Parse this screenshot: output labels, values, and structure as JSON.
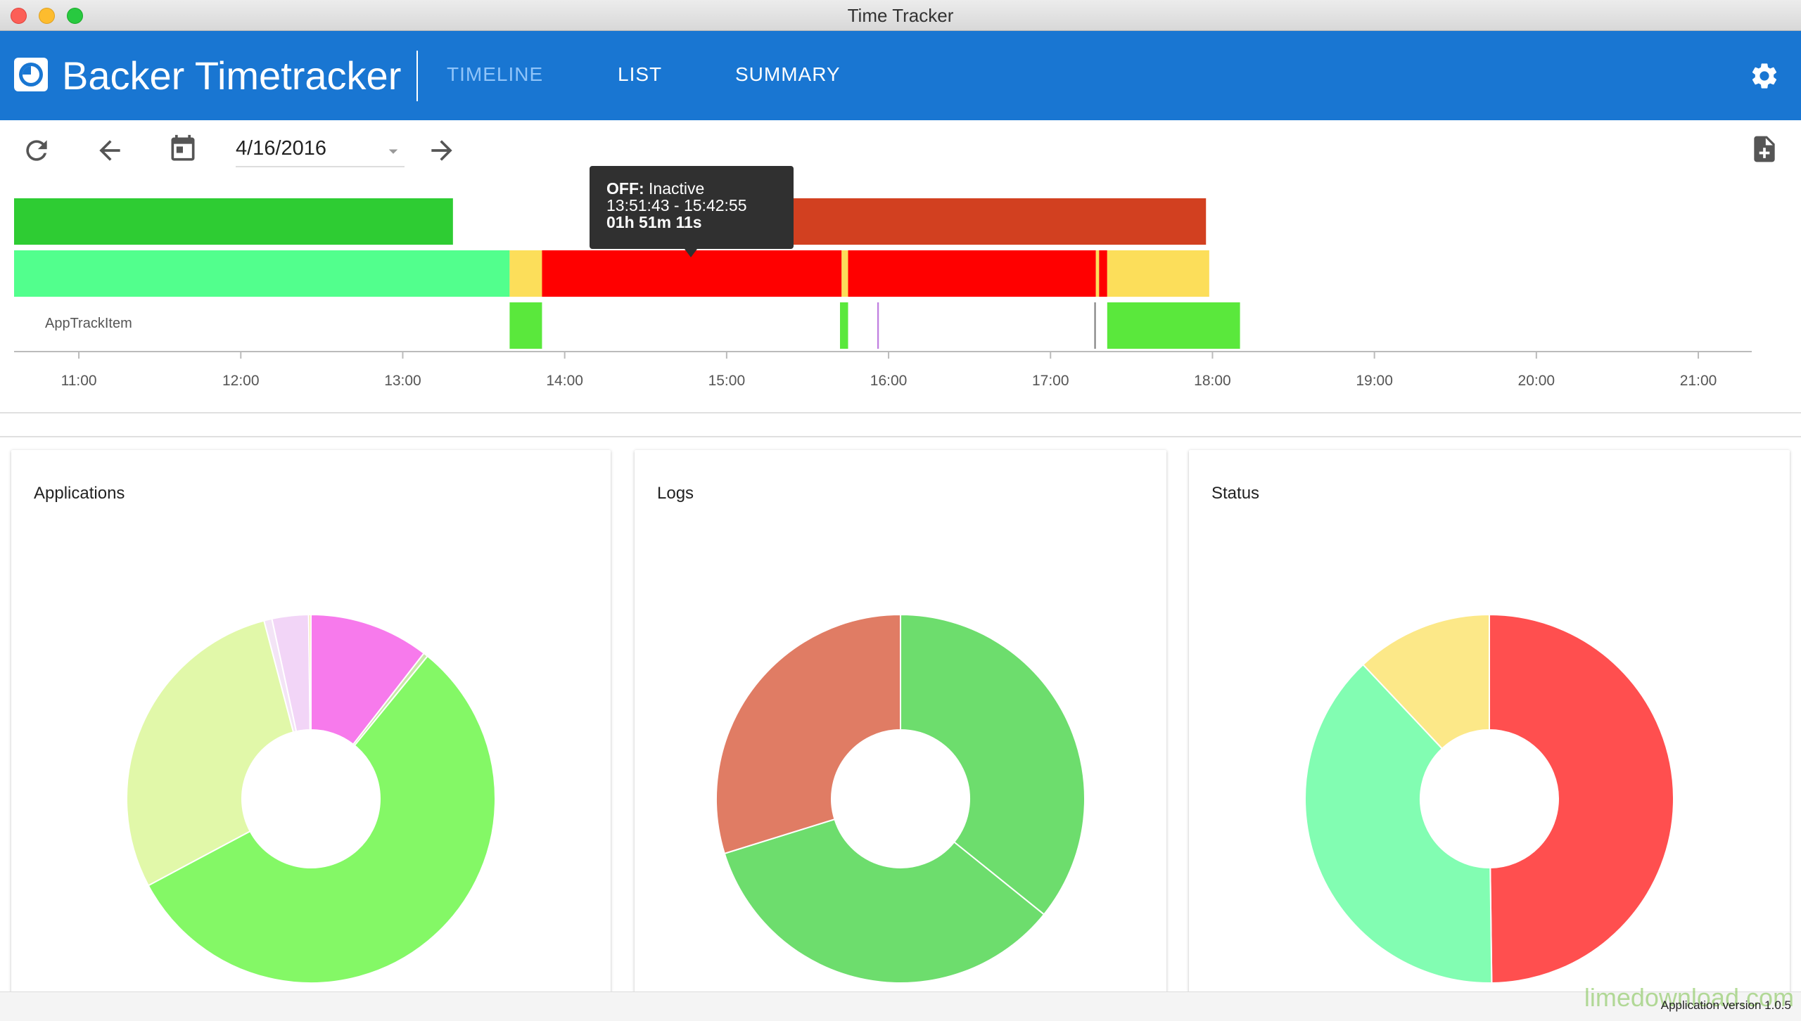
{
  "window": {
    "title": "Time Tracker"
  },
  "header": {
    "brand": "Backer Timetracker",
    "tabs": [
      {
        "label": "TIMELINE",
        "active": true
      },
      {
        "label": "LIST",
        "active": false
      },
      {
        "label": "SUMMARY",
        "active": false
      }
    ],
    "icons": {
      "logo": "clock-logo-icon",
      "settings": "gear-icon"
    }
  },
  "toolbar": {
    "date": "4/16/2016",
    "icons": [
      "refresh-icon",
      "arrow-back-icon",
      "calendar-icon",
      "dropdown-arrow-icon",
      "arrow-forward-icon",
      "add-file-icon"
    ]
  },
  "timeline": {
    "row_label": "AppTrackItem",
    "ticks": [
      "11:00",
      "12:00",
      "13:00",
      "14:00",
      "15:00",
      "16:00",
      "17:00",
      "18:00",
      "19:00",
      "20:00",
      "21:00"
    ],
    "start_hour": 10.6,
    "end_hour": 21.33,
    "lane1": [
      {
        "s": 10.6,
        "e": 13.31,
        "color": "#2ecc33"
      },
      {
        "s": 15.2,
        "e": 17.96,
        "color": "#d24020"
      }
    ],
    "lane2": [
      {
        "s": 10.6,
        "e": 13.66,
        "color": "#52ff8d"
      },
      {
        "s": 13.66,
        "e": 13.86,
        "color": "#fcde5a"
      },
      {
        "s": 13.86,
        "e": 15.71,
        "color": "#ff0000"
      },
      {
        "s": 15.71,
        "e": 15.75,
        "color": "#fcde5a"
      },
      {
        "s": 15.75,
        "e": 17.28,
        "color": "#ff0000"
      },
      {
        "s": 17.28,
        "e": 17.3,
        "color": "#fcde5a"
      },
      {
        "s": 17.3,
        "e": 17.35,
        "color": "#ff0000"
      },
      {
        "s": 17.35,
        "e": 17.98,
        "color": "#fcde5a"
      }
    ],
    "lane3": [
      {
        "s": 13.66,
        "e": 13.86,
        "color": "#5ae83c"
      },
      {
        "s": 15.7,
        "e": 15.75,
        "color": "#5ae83c"
      },
      {
        "s": 15.93,
        "e": 15.94,
        "color": "#c080e0"
      },
      {
        "s": 17.27,
        "e": 17.28,
        "color": "#888888"
      },
      {
        "s": 17.35,
        "e": 18.17,
        "color": "#5ae83c"
      }
    ]
  },
  "tooltip": {
    "status": "OFF:",
    "name": "Inactive",
    "range": "13:51:43 - 15:42:55",
    "duration": "01h 51m 11s"
  },
  "cards": [
    {
      "title": "Applications"
    },
    {
      "title": "Logs"
    },
    {
      "title": "Status"
    }
  ],
  "chart_data": [
    {
      "type": "pie",
      "title": "Applications",
      "slices": [
        {
          "value": 10.5,
          "color": "#f77aec"
        },
        {
          "value": 0.4,
          "color": "#c9e8a9"
        },
        {
          "value": 56.3,
          "color": "#84f866"
        },
        {
          "value": 28.7,
          "color": "#e1f8a9"
        },
        {
          "value": 0.7,
          "color": "#f3e4f6"
        },
        {
          "value": 3.2,
          "color": "#f2d5f7"
        },
        {
          "value": 0.2,
          "color": "#f4e5a2"
        }
      ]
    },
    {
      "type": "pie",
      "title": "Logs",
      "slices": [
        {
          "value": 35.8,
          "color": "#6ddd6d"
        },
        {
          "value": 34.4,
          "color": "#6ddd6d"
        },
        {
          "value": 29.8,
          "color": "#e07c64"
        }
      ]
    },
    {
      "type": "pie",
      "title": "Status",
      "slices": [
        {
          "value": 48.5,
          "color": "#ff4f4f"
        },
        {
          "value": 37.2,
          "color": "#82fdb2"
        },
        {
          "value": 11.7,
          "color": "#fce888"
        }
      ]
    }
  ],
  "footer": {
    "version": "Application version 1.0.5",
    "watermark": "limedownload.com"
  }
}
